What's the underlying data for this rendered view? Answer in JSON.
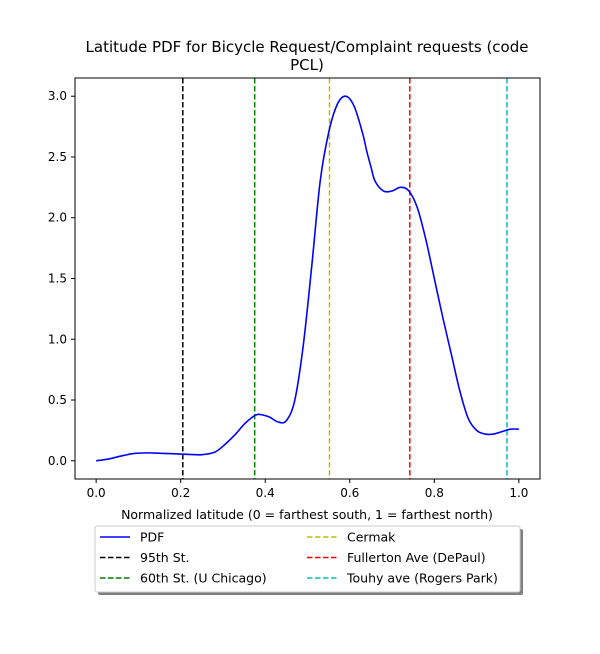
{
  "chart_data": {
    "type": "line",
    "title_lines": [
      "Latitude PDF for Bicycle Request/Complaint  requests (code",
      "PCL)"
    ],
    "xlabel": "Normalized latitude (0 = farthest south, 1 = farthest north)",
    "ylabel": "",
    "xlim": [
      -0.05,
      1.05
    ],
    "ylim": [
      -0.15,
      3.15
    ],
    "x_ticks": [
      0.0,
      0.2,
      0.4,
      0.6,
      0.8,
      1.0
    ],
    "x_tick_labels": [
      "0.0",
      "0.2",
      "0.4",
      "0.6",
      "0.8",
      "1.0"
    ],
    "y_ticks": [
      0.0,
      0.5,
      1.0,
      1.5,
      2.0,
      2.5,
      3.0
    ],
    "y_tick_labels": [
      "0.0",
      "0.5",
      "1.0",
      "1.5",
      "2.0",
      "2.5",
      "3.0"
    ],
    "grid": false,
    "legend_position": "below plot, two columns",
    "pdf_series": {
      "name": "PDF",
      "color": "#0000ff",
      "x": [
        0.0,
        0.03,
        0.06,
        0.09,
        0.12,
        0.15,
        0.18,
        0.2,
        0.22,
        0.25,
        0.28,
        0.3,
        0.33,
        0.35,
        0.37,
        0.38,
        0.39,
        0.41,
        0.43,
        0.45,
        0.47,
        0.49,
        0.51,
        0.53,
        0.55,
        0.57,
        0.59,
        0.61,
        0.63,
        0.64,
        0.65,
        0.66,
        0.68,
        0.7,
        0.72,
        0.74,
        0.76,
        0.78,
        0.8,
        0.82,
        0.84,
        0.86,
        0.88,
        0.9,
        0.92,
        0.94,
        0.96,
        0.98,
        1.0
      ],
      "y": [
        0.0,
        0.015,
        0.04,
        0.06,
        0.065,
        0.062,
        0.058,
        0.055,
        0.052,
        0.05,
        0.07,
        0.12,
        0.22,
        0.3,
        0.36,
        0.38,
        0.38,
        0.36,
        0.32,
        0.33,
        0.5,
        0.95,
        1.6,
        2.3,
        2.7,
        2.93,
        3.0,
        2.92,
        2.7,
        2.55,
        2.42,
        2.3,
        2.22,
        2.22,
        2.25,
        2.22,
        2.08,
        1.82,
        1.5,
        1.18,
        0.88,
        0.58,
        0.35,
        0.25,
        0.22,
        0.22,
        0.24,
        0.26,
        0.26
      ]
    },
    "reference_lines": [
      {
        "name": "95th St.",
        "x": 0.205,
        "color": "#000000"
      },
      {
        "name": "60th St. (U Chicago)",
        "x": 0.375,
        "color": "#008000"
      },
      {
        "name": "Cermak",
        "x": 0.552,
        "color": "#bfbf00"
      },
      {
        "name": "Fullerton Ave (DePaul)",
        "x": 0.742,
        "color": "#ff0000"
      },
      {
        "name": "Touhy ave (Rogers Park)",
        "x": 0.972,
        "color": "#00bfbf"
      }
    ]
  },
  "legend": {
    "items": [
      {
        "label": "PDF",
        "color": "#0000ff",
        "style": "solid"
      },
      {
        "label": "95th St.",
        "color": "#000000",
        "style": "dashed"
      },
      {
        "label": "60th St. (U Chicago)",
        "color": "#008000",
        "style": "dashed"
      },
      {
        "label": "Cermak",
        "color": "#bfbf00",
        "style": "dashed"
      },
      {
        "label": "Fullerton Ave (DePaul)",
        "color": "#ff0000",
        "style": "dashed"
      },
      {
        "label": "Touhy ave (Rogers Park)",
        "color": "#00bfbf",
        "style": "dashed"
      }
    ]
  }
}
